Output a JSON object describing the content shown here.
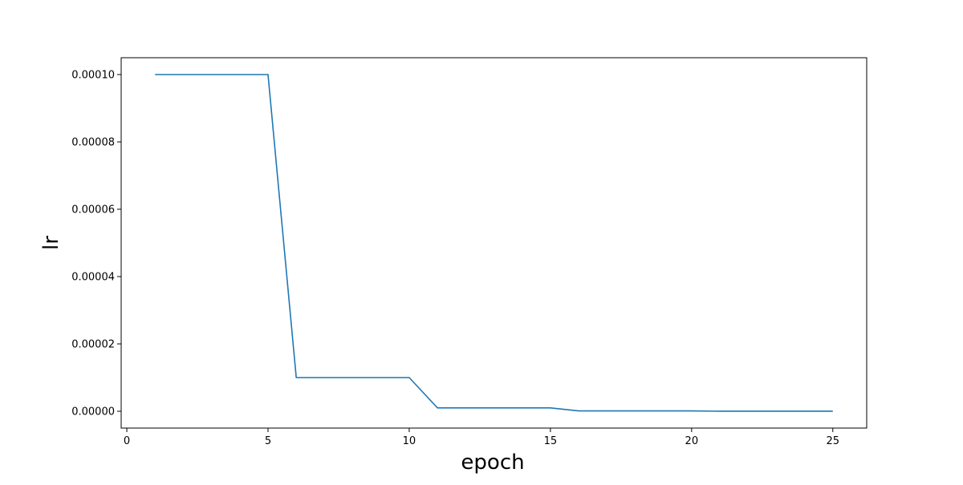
{
  "chart_data": {
    "type": "line",
    "title": "",
    "xlabel": "epoch",
    "ylabel": "lr",
    "xlim": [
      -0.2,
      26.2
    ],
    "ylim": [
      -5e-06,
      0.000105
    ],
    "xticks": [
      0,
      5,
      10,
      15,
      20,
      25
    ],
    "xtick_labels": [
      "0",
      "5",
      "10",
      "15",
      "20",
      "25"
    ],
    "yticks": [
      0.0,
      2e-05,
      4e-05,
      6e-05,
      8e-05,
      0.0001
    ],
    "ytick_labels": [
      "0.00000",
      "0.00002",
      "0.00004",
      "0.00006",
      "0.00008",
      "0.00010"
    ],
    "grid": false,
    "legend": "none",
    "series": [
      {
        "color": "#1f77b4",
        "x": [
          1,
          2,
          3,
          4,
          5,
          6,
          7,
          8,
          9,
          10,
          11,
          12,
          13,
          14,
          15,
          16,
          17,
          18,
          19,
          20,
          21,
          22,
          23,
          24,
          25
        ],
        "y": [
          0.0001,
          0.0001,
          0.0001,
          0.0001,
          0.0001,
          1e-05,
          1e-05,
          1e-05,
          1e-05,
          1e-05,
          1e-06,
          1e-06,
          1e-06,
          1e-06,
          1e-06,
          1e-07,
          1e-07,
          1e-07,
          1e-07,
          1e-07,
          1e-08,
          1e-08,
          1e-08,
          1e-08,
          1e-08
        ]
      }
    ]
  }
}
